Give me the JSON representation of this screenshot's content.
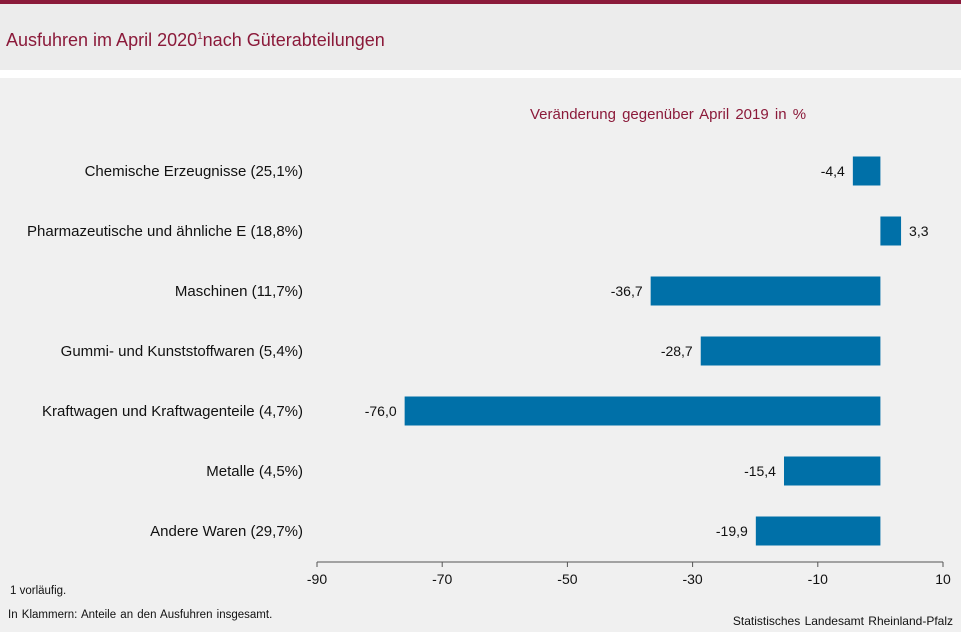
{
  "header": {
    "title": "Ausfuhren im April 2020",
    "title_superscript": "1",
    "title_suffix": "nach Güterabteilungen"
  },
  "chart_data": {
    "type": "bar",
    "orientation": "horizontal",
    "subtitle": "Veränderung gegenüber April 2019 in %",
    "categories": [
      "Chemische Erzeugnisse (25,1%)",
      "Pharmazeutische und ähnliche E (18,8%)",
      "Maschinen (11,7%)",
      "Gummi- und Kunststoffwaren (5,4%)",
      "Kraftwagen und Kraftwagenteile (4,7%)",
      "Metalle (4,5%)",
      "Andere Waren (29,7%)"
    ],
    "values": [
      -4.4,
      3.3,
      -36.7,
      -28.7,
      -76.0,
      -15.4,
      -19.9
    ],
    "value_labels": [
      "-4,4",
      "3,3",
      "-36,7",
      "-28,7",
      "-76,0",
      "-15,4",
      "-19,9"
    ],
    "xlim": [
      -90,
      10
    ],
    "xticks": [
      -90,
      -70,
      -50,
      -30,
      -10,
      10
    ],
    "grid": false,
    "bar_color": "#0070a8"
  },
  "footer": {
    "footnote_1": "1 vorläufig.",
    "footnote_2": "In Klammern: Anteile an den Ausfuhren insgesamt.",
    "source": "Statistisches Landesamt Rheinland-Pfalz"
  }
}
